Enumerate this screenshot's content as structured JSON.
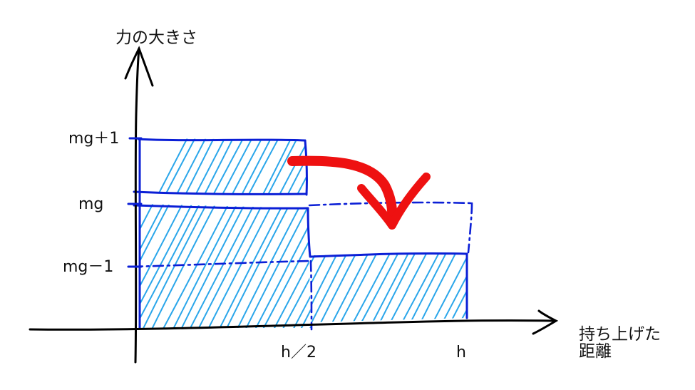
{
  "labels": {
    "y_axis": "力の大きさ",
    "x_axis_line1": "持ち上げた",
    "x_axis_line2": "距離",
    "y_mg_plus_1": "mg＋1",
    "y_mg": "mg",
    "y_mg_minus_1": "mg－1",
    "x_half": "h／2",
    "x_h": "h"
  },
  "colors": {
    "axis": "#000000",
    "outline": "#0b1fd6",
    "hatch": "#2aa6ea",
    "arrow": "#ee1111",
    "text": "#111111"
  }
}
